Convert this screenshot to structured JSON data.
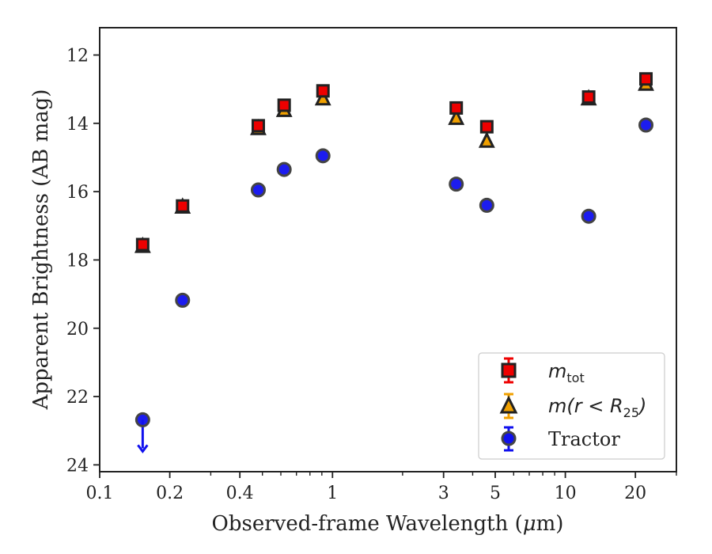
{
  "chart_data": {
    "type": "scatter",
    "xlabel_prefix": "Observed-frame Wavelength (",
    "xlabel_mu": "μ",
    "xlabel_suffix": "m)",
    "ylabel": "Apparent Brightness (AB mag)",
    "x_scale": "log",
    "xlim": [
      0.1,
      30
    ],
    "ylim": [
      24.2,
      11.2
    ],
    "y_inverted": true,
    "x_ticks": [
      {
        "value": 0.1,
        "label": "0.1"
      },
      {
        "value": 0.2,
        "label": "0.2"
      },
      {
        "value": 0.4,
        "label": "0.4"
      },
      {
        "value": 1,
        "label": "1"
      },
      {
        "value": 3,
        "label": "3"
      },
      {
        "value": 5,
        "label": "5"
      },
      {
        "value": 10,
        "label": "10"
      },
      {
        "value": 20,
        "label": "20"
      }
    ],
    "x_minor_ticks": [
      0.3,
      0.5,
      0.6,
      0.7,
      0.8,
      0.9,
      2,
      4,
      6,
      7,
      8,
      9,
      30
    ],
    "y_ticks": [
      {
        "value": 12,
        "label": "12"
      },
      {
        "value": 14,
        "label": "14"
      },
      {
        "value": 16,
        "label": "16"
      },
      {
        "value": 18,
        "label": "18"
      },
      {
        "value": 20,
        "label": "20"
      },
      {
        "value": 22,
        "label": "22"
      },
      {
        "value": 24,
        "label": "24"
      }
    ],
    "grid": false,
    "legend_position": "lower right",
    "series": [
      {
        "name": "m_tot",
        "legend": {
          "base": "m",
          "sub": "tot",
          "rest": ""
        },
        "marker": "square",
        "color": "#ee0000",
        "edge": "#222222",
        "points": [
          {
            "x": 0.153,
            "y": 17.55
          },
          {
            "x": 0.227,
            "y": 16.42
          },
          {
            "x": 0.48,
            "y": 14.07
          },
          {
            "x": 0.62,
            "y": 13.47
          },
          {
            "x": 0.91,
            "y": 13.05
          },
          {
            "x": 3.4,
            "y": 13.55
          },
          {
            "x": 4.6,
            "y": 14.1
          },
          {
            "x": 12.6,
            "y": 13.23
          },
          {
            "x": 22.2,
            "y": 12.7
          }
        ]
      },
      {
        "name": "m(r<R_25)",
        "legend": {
          "base": "m(r < R",
          "sub": "25",
          "rest": ")"
        },
        "marker": "triangle",
        "color": "#f0a000",
        "edge": "#222222",
        "points": [
          {
            "x": 0.153,
            "y": 17.6
          },
          {
            "x": 0.227,
            "y": 16.45
          },
          {
            "x": 0.48,
            "y": 14.15
          },
          {
            "x": 0.62,
            "y": 13.62
          },
          {
            "x": 0.91,
            "y": 13.28
          },
          {
            "x": 3.4,
            "y": 13.85
          },
          {
            "x": 4.6,
            "y": 14.52
          },
          {
            "x": 12.6,
            "y": 13.28
          },
          {
            "x": 22.2,
            "y": 12.85
          }
        ]
      },
      {
        "name": "Tractor",
        "legend": {
          "base": "Tractor",
          "sub": "",
          "rest": ""
        },
        "marker": "circle",
        "color": "#1010ee",
        "edge": "#444444",
        "points": [
          {
            "x": 0.153,
            "y": 22.68,
            "upper_limit": true
          },
          {
            "x": 0.227,
            "y": 19.18
          },
          {
            "x": 0.48,
            "y": 15.95
          },
          {
            "x": 0.62,
            "y": 15.35
          },
          {
            "x": 0.91,
            "y": 14.95
          },
          {
            "x": 3.4,
            "y": 15.78
          },
          {
            "x": 4.6,
            "y": 16.4
          },
          {
            "x": 12.6,
            "y": 16.72
          },
          {
            "x": 22.2,
            "y": 14.05
          }
        ]
      }
    ]
  }
}
